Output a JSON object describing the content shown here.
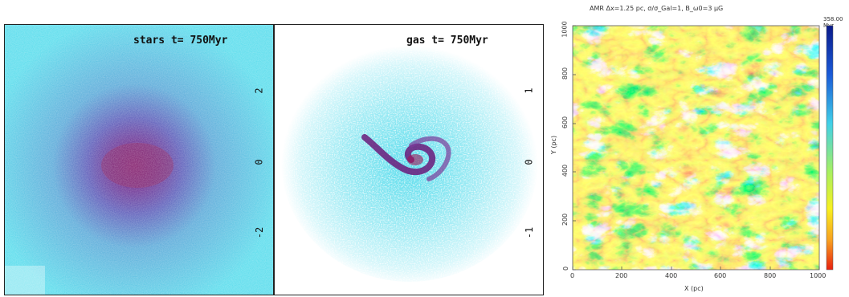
{
  "panels": {
    "stars": {
      "label": "stars  t=  750Myr",
      "yticks": [
        "2",
        "0",
        "-2"
      ]
    },
    "gas": {
      "label": "gas    t=  750Myr",
      "yticks": [
        "1",
        "0",
        "-1"
      ]
    },
    "amr": {
      "title": "AMR Δx=1.25 pc, σ/σ_Gal=1, B_ω0=3 μG",
      "time_label": "358.00 Myr",
      "xlabel": "X (pc)",
      "ylabel": "Y (pc)",
      "xticks": [
        "0",
        "200",
        "400",
        "600",
        "800",
        "1000"
      ],
      "yticks": [
        "0",
        "200",
        "400",
        "600",
        "800",
        "1000"
      ]
    }
  },
  "colors": {
    "cyan_bg": "#58dcec",
    "purple": "#6a1a8a",
    "dark_red": "#b01848"
  }
}
